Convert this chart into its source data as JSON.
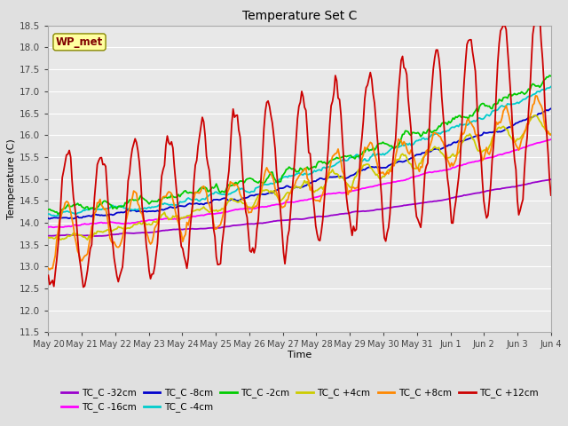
{
  "title": "Temperature Set C",
  "xlabel": "Time",
  "ylabel": "Temperature (C)",
  "ylim": [
    11.5,
    18.5
  ],
  "xlim_days": 15,
  "x_tick_labels": [
    "May 20",
    "May 21",
    "May 22",
    "May 23",
    "May 24",
    "May 25",
    "May 26",
    "May 27",
    "May 28",
    "May 29",
    "May 30",
    "May 31",
    "Jun 1",
    "Jun 2",
    "Jun 3",
    "Jun 4"
  ],
  "wp_met_label": "WP_met",
  "wp_met_box_color": "#FFFFA0",
  "wp_met_text_color": "#800000",
  "background_color": "#E0E0E0",
  "plot_bg_color": "#E8E8E8",
  "grid_color": "#FFFFFF",
  "series": [
    {
      "label": "TC_C -32cm",
      "color": "#9900CC"
    },
    {
      "label": "TC_C -16cm",
      "color": "#FF00FF"
    },
    {
      "label": "TC_C -8cm",
      "color": "#0000CC"
    },
    {
      "label": "TC_C -4cm",
      "color": "#00CCCC"
    },
    {
      "label": "TC_C -2cm",
      "color": "#00CC00"
    },
    {
      "label": "TC_C +4cm",
      "color": "#CCCC00"
    },
    {
      "label": "TC_C +8cm",
      "color": "#FF8800"
    },
    {
      "label": "TC_C +12cm",
      "color": "#CC0000"
    }
  ]
}
